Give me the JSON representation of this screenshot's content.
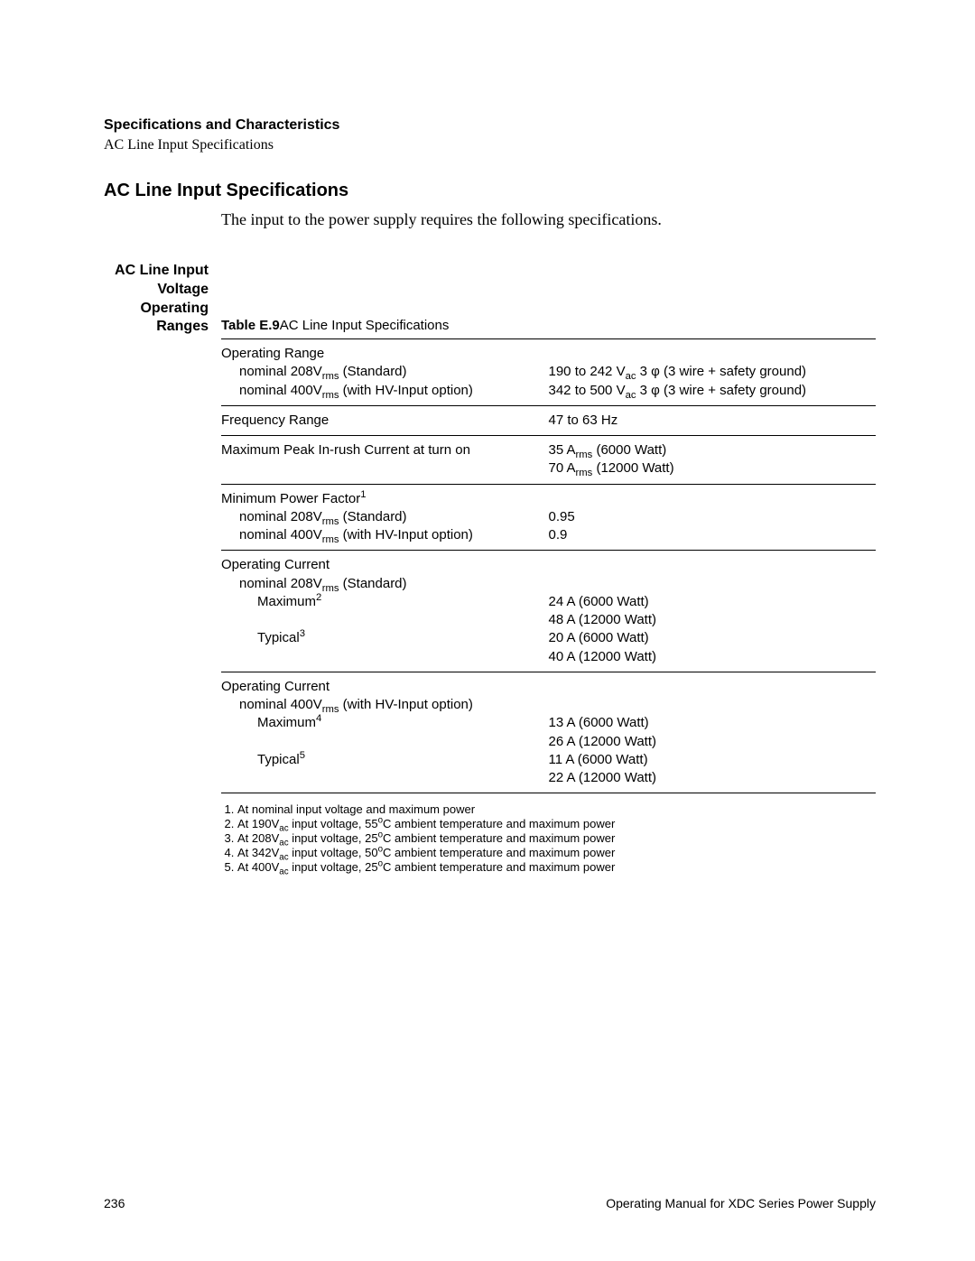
{
  "header": {
    "title": "Specifications and Characteristics",
    "subtitle": "AC Line Input Specifications"
  },
  "section": {
    "heading": "AC Line Input Specifications",
    "intro": "The input to the power supply requires the following specifications."
  },
  "side_label": {
    "l1": "AC Line Input",
    "l2": "Voltage",
    "l3": "Operating",
    "l4": "Ranges"
  },
  "table": {
    "title_bold": "Table E.9",
    "title_rest": "AC Line Input Specifications",
    "rows": [
      {
        "left_main": "Operating Range",
        "left_sub1_pre": "nominal 208V",
        "left_sub1_sub": "rms",
        "left_sub1_post": " (Standard)",
        "left_sub2_pre": "nominal 400V",
        "left_sub2_sub": "rms",
        "left_sub2_post": " (with HV-Input option)",
        "right_l1_pre": "190 to 242 V",
        "right_l1_sub": "ac",
        "right_l1_post": " 3 φ (3 wire + safety ground)",
        "right_l2_pre": "342 to 500 V",
        "right_l2_sub": "ac",
        "right_l2_post": " 3 φ (3 wire + safety ground)"
      },
      {
        "left_main": "Frequency Range",
        "right_plain": "47 to 63 Hz"
      },
      {
        "left_main": "Maximum Peak In-rush Current at turn on",
        "right_l1_pre": "35 A",
        "right_l1_sub": "rms",
        "right_l1_post": " (6000 Watt)",
        "right_l2_pre": "70 A",
        "right_l2_sub": "rms",
        "right_l2_post": " (12000 Watt)"
      },
      {
        "left_main_pre": "Minimum Power Factor",
        "left_main_sup": "1",
        "left_sub1_pre": "nominal 208V",
        "left_sub1_sub": "rms",
        "left_sub1_post": " (Standard)",
        "left_sub2_pre": "nominal 400V",
        "left_sub2_sub": "rms",
        "left_sub2_post": " (with HV-Input option)",
        "right_l1_plain": "0.95",
        "right_l2_plain": "0.9"
      },
      {
        "left_main": "Operating Current",
        "left_sub1_pre": "nominal 208V",
        "left_sub1_sub": "rms",
        "left_sub1_post": " (Standard)",
        "left_sub2_pre2": "Maximum",
        "left_sub2_sup": "2",
        "left_sub3_pre2": "Typical",
        "left_sub3_sup": "3",
        "right_l1_plain": "24 A (6000 Watt)",
        "right_l2_plain": "48 A (12000 Watt)",
        "right_l3_plain": "20 A (6000 Watt)",
        "right_l4_plain": "40 A (12000 Watt)"
      },
      {
        "left_main": "Operating Current",
        "left_sub1_pre": "nominal 400V",
        "left_sub1_sub": "rms",
        "left_sub1_post": " (with HV-Input option)",
        "left_sub2_pre2": "Maximum",
        "left_sub2_sup": "4",
        "left_sub3_pre2": "Typical",
        "left_sub3_sup": "5",
        "right_l1_plain": "13 A (6000 Watt)",
        "right_l2_plain": "26 A (12000 Watt)",
        "right_l3_plain": "11 A (6000 Watt)",
        "right_l4_plain": "22 A (12000 Watt)"
      }
    ]
  },
  "footnotes": {
    "n1": "At nominal input voltage and maximum power",
    "n2_pre": "At 190V",
    "n2_sub": "ac",
    "n2_mid": " input voltage, 55",
    "n2_post": "C ambient temperature and maximum power",
    "n3_pre": "At 208V",
    "n3_sub": "ac",
    "n3_mid": " input voltage, 25",
    "n3_post": "C ambient temperature and maximum power",
    "n4_pre": "At 342V",
    "n4_sub": "ac",
    "n4_mid": " input voltage, 50",
    "n4_post": "C ambient temperature and maximum power",
    "n5_pre": "At 400V",
    "n5_sub": "ac",
    "n5_mid": " input voltage, 25",
    "n5_post": "C ambient temperature and maximum power",
    "deg": "o"
  },
  "footer": {
    "page": "236",
    "doc": "Operating Manual for XDC Series Power Supply"
  }
}
